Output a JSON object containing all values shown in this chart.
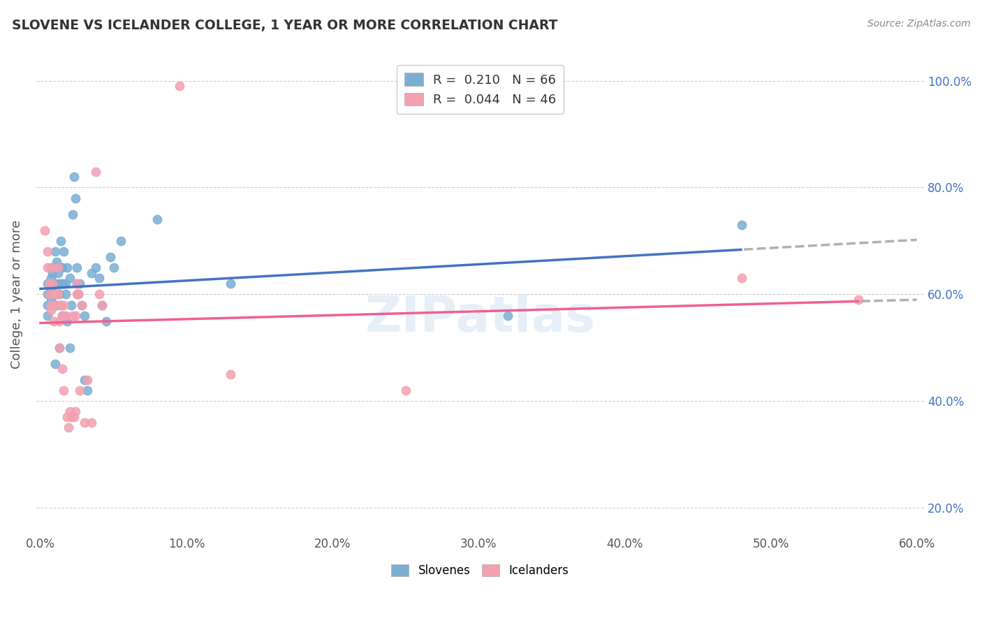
{
  "title": "SLOVENE VS ICELANDER COLLEGE, 1 YEAR OR MORE CORRELATION CHART",
  "source": "Source: ZipAtlas.com",
  "ylabel_label": "College, 1 year or more",
  "slovene_color": "#7aafd4",
  "icelander_color": "#f4a0b0",
  "slovene_line_color": "#4472c4",
  "icelander_line_color": "#f06090",
  "dashed_color": "#b0b0b0",
  "right_tick_color": "#4472c4",
  "xlim": [
    0.0,
    0.6
  ],
  "ylim": [
    0.15,
    1.05
  ],
  "x_tick_vals": [
    0.0,
    0.1,
    0.2,
    0.3,
    0.4,
    0.5,
    0.6
  ],
  "y_tick_vals": [
    0.2,
    0.4,
    0.6,
    0.8,
    1.0
  ],
  "slovene_points": [
    [
      0.005,
      0.62
    ],
    [
      0.005,
      0.6
    ],
    [
      0.005,
      0.58
    ],
    [
      0.005,
      0.56
    ],
    [
      0.007,
      0.65
    ],
    [
      0.007,
      0.63
    ],
    [
      0.007,
      0.61
    ],
    [
      0.007,
      0.59
    ],
    [
      0.008,
      0.64
    ],
    [
      0.008,
      0.6
    ],
    [
      0.008,
      0.58
    ],
    [
      0.009,
      0.62
    ],
    [
      0.009,
      0.6
    ],
    [
      0.01,
      0.68
    ],
    [
      0.01,
      0.65
    ],
    [
      0.01,
      0.62
    ],
    [
      0.01,
      0.58
    ],
    [
      0.01,
      0.47
    ],
    [
      0.011,
      0.66
    ],
    [
      0.011,
      0.6
    ],
    [
      0.011,
      0.58
    ],
    [
      0.012,
      0.64
    ],
    [
      0.012,
      0.6
    ],
    [
      0.013,
      0.62
    ],
    [
      0.013,
      0.6
    ],
    [
      0.013,
      0.5
    ],
    [
      0.014,
      0.7
    ],
    [
      0.014,
      0.65
    ],
    [
      0.014,
      0.62
    ],
    [
      0.014,
      0.58
    ],
    [
      0.015,
      0.65
    ],
    [
      0.015,
      0.62
    ],
    [
      0.015,
      0.56
    ],
    [
      0.016,
      0.68
    ],
    [
      0.016,
      0.62
    ],
    [
      0.016,
      0.56
    ],
    [
      0.017,
      0.62
    ],
    [
      0.017,
      0.6
    ],
    [
      0.018,
      0.65
    ],
    [
      0.018,
      0.55
    ],
    [
      0.02,
      0.63
    ],
    [
      0.02,
      0.5
    ],
    [
      0.021,
      0.58
    ],
    [
      0.022,
      0.75
    ],
    [
      0.023,
      0.82
    ],
    [
      0.024,
      0.78
    ],
    [
      0.025,
      0.65
    ],
    [
      0.025,
      0.62
    ],
    [
      0.026,
      0.6
    ],
    [
      0.027,
      0.62
    ],
    [
      0.028,
      0.58
    ],
    [
      0.03,
      0.56
    ],
    [
      0.03,
      0.44
    ],
    [
      0.032,
      0.42
    ],
    [
      0.035,
      0.64
    ],
    [
      0.038,
      0.65
    ],
    [
      0.04,
      0.63
    ],
    [
      0.042,
      0.58
    ],
    [
      0.045,
      0.55
    ],
    [
      0.048,
      0.67
    ],
    [
      0.05,
      0.65
    ],
    [
      0.055,
      0.7
    ],
    [
      0.08,
      0.74
    ],
    [
      0.13,
      0.62
    ],
    [
      0.32,
      0.56
    ],
    [
      0.48,
      0.73
    ]
  ],
  "icelander_points": [
    [
      0.003,
      0.72
    ],
    [
      0.005,
      0.68
    ],
    [
      0.005,
      0.65
    ],
    [
      0.006,
      0.62
    ],
    [
      0.006,
      0.6
    ],
    [
      0.007,
      0.58
    ],
    [
      0.007,
      0.57
    ],
    [
      0.008,
      0.65
    ],
    [
      0.008,
      0.62
    ],
    [
      0.009,
      0.55
    ],
    [
      0.01,
      0.6
    ],
    [
      0.011,
      0.58
    ],
    [
      0.012,
      0.65
    ],
    [
      0.012,
      0.6
    ],
    [
      0.013,
      0.55
    ],
    [
      0.013,
      0.5
    ],
    [
      0.014,
      0.58
    ],
    [
      0.015,
      0.56
    ],
    [
      0.015,
      0.46
    ],
    [
      0.016,
      0.58
    ],
    [
      0.016,
      0.42
    ],
    [
      0.017,
      0.56
    ],
    [
      0.018,
      0.37
    ],
    [
      0.019,
      0.35
    ],
    [
      0.02,
      0.38
    ],
    [
      0.021,
      0.37
    ],
    [
      0.022,
      0.56
    ],
    [
      0.023,
      0.37
    ],
    [
      0.024,
      0.56
    ],
    [
      0.024,
      0.38
    ],
    [
      0.025,
      0.62
    ],
    [
      0.025,
      0.6
    ],
    [
      0.026,
      0.6
    ],
    [
      0.027,
      0.42
    ],
    [
      0.028,
      0.58
    ],
    [
      0.03,
      0.36
    ],
    [
      0.032,
      0.44
    ],
    [
      0.035,
      0.36
    ],
    [
      0.038,
      0.83
    ],
    [
      0.04,
      0.6
    ],
    [
      0.042,
      0.58
    ],
    [
      0.095,
      0.99
    ],
    [
      0.13,
      0.45
    ],
    [
      0.25,
      0.42
    ],
    [
      0.48,
      0.63
    ],
    [
      0.56,
      0.59
    ]
  ]
}
